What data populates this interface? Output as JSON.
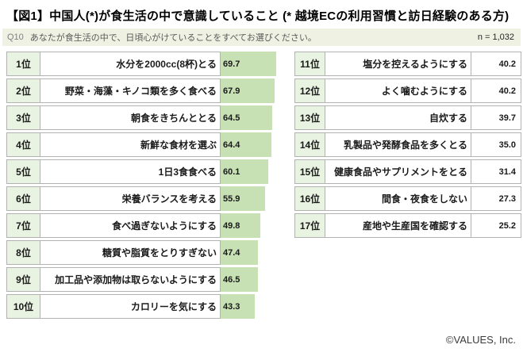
{
  "title": "【図1】中国人(*)が食生活の中で意識していること (* 越境ECの利用習慣と訪日経験のある方)",
  "question": {
    "tag": "Q10",
    "text": "あなたが食生活の中で、日頃心がけていることをすべてお選びください。",
    "sample": "n = 1,032"
  },
  "footer": {
    "copyright": "©VALUES, Inc."
  },
  "colors": {
    "bar_green": "#c7e1b5",
    "rank_bg": "#e9f3e1",
    "strip_bg": "#eff2e3",
    "border": "#b2b2b2"
  },
  "left_rows": [
    {
      "rank": "1位",
      "label": "水分を2000cc(8杯)とる",
      "value": "69.7",
      "value_num": 69.7
    },
    {
      "rank": "2位",
      "label": "野菜・海藻・キノコ類を多く食べる",
      "value": "67.9",
      "value_num": 67.9
    },
    {
      "rank": "3位",
      "label": "朝食をきちんととる",
      "value": "64.5",
      "value_num": 64.5
    },
    {
      "rank": "4位",
      "label": "新鮮な食材を選ぶ",
      "value": "64.4",
      "value_num": 64.4
    },
    {
      "rank": "5位",
      "label": "1日3食食べる",
      "value": "60.1",
      "value_num": 60.1
    },
    {
      "rank": "6位",
      "label": "栄養バランスを考える",
      "value": "55.9",
      "value_num": 55.9
    },
    {
      "rank": "7位",
      "label": "食べ過ぎないようにする",
      "value": "49.8",
      "value_num": 49.8
    },
    {
      "rank": "8位",
      "label": "糖質や脂質をとりすぎない",
      "value": "47.4",
      "value_num": 47.4
    },
    {
      "rank": "9位",
      "label": "加工品や添加物は取らないようにする",
      "value": "46.5",
      "value_num": 46.5
    },
    {
      "rank": "10位",
      "label": "カロリーを気にする",
      "value": "43.3",
      "value_num": 43.3
    }
  ],
  "right_rows": [
    {
      "rank": "11位",
      "label": "塩分を控えるようにする",
      "value": "40.2",
      "value_num": 40.2
    },
    {
      "rank": "12位",
      "label": "よく噛むようにする",
      "value": "40.2",
      "value_num": 40.2
    },
    {
      "rank": "13位",
      "label": "自炊する",
      "value": "39.7",
      "value_num": 39.7
    },
    {
      "rank": "14位",
      "label": "乳製品や発酵食品を多くとる",
      "value": "35.0",
      "value_num": 35.0
    },
    {
      "rank": "15位",
      "label": "健康食品やサプリメントをとる",
      "value": "31.4",
      "value_num": 31.4
    },
    {
      "rank": "16位",
      "label": "間食・夜食をしない",
      "value": "27.3",
      "value_num": 27.3
    },
    {
      "rank": "17位",
      "label": "産地や生産国を確認する",
      "value": "25.2",
      "value_num": 25.2
    }
  ],
  "chart_data": {
    "type": "bar",
    "title": "【図1】中国人(*)が食生活の中で意識していること (* 越境ECの利用習慣と訪日経験のある方)",
    "subtitle": "Q10 あなたが食生活の中で、日頃心がけていることをすべてお選びください。",
    "sample_size": 1032,
    "unit": "%",
    "orientation": "horizontal",
    "xlim": [
      0,
      100
    ],
    "categories": [
      "水分を2000cc(8杯)とる",
      "野菜・海藻・キノコ類を多く食べる",
      "朝食をきちんととる",
      "新鮮な食材を選ぶ",
      "1日3食食べる",
      "栄養バランスを考える",
      "食べ過ぎないようにする",
      "糖質や脂質をとりすぎない",
      "加工品や添加物は取らないようにする",
      "カロリーを気にする",
      "塩分を控えるようにする",
      "よく噛むようにする",
      "自炊する",
      "乳製品や発酵食品を多くとる",
      "健康食品やサプリメントをとる",
      "間食・夜食をしない",
      "産地や生産国を確認する"
    ],
    "values": [
      69.7,
      67.9,
      64.5,
      64.4,
      60.1,
      55.9,
      49.8,
      47.4,
      46.5,
      43.3,
      40.2,
      40.2,
      39.7,
      35.0,
      31.4,
      27.3,
      25.2
    ]
  }
}
